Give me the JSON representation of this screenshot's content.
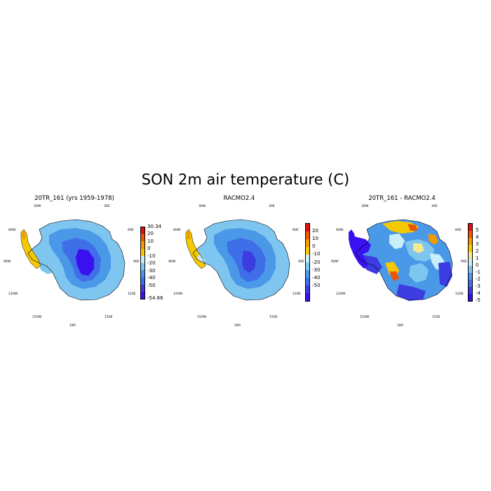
{
  "figure": {
    "title": "SON 2m air temperature (C)"
  },
  "panels": [
    {
      "title": "20TR_161 (yrs 1959-1978)",
      "lon_labels": [
        "30W",
        "30E",
        "60W",
        "60E",
        "90W",
        "90E",
        "120W",
        "120E",
        "150W",
        "150E",
        "180"
      ],
      "colorbar": {
        "colors": [
          "#3a10f0",
          "#3c3ce0",
          "#3e6ee8",
          "#4a99e8",
          "#7ec6f0",
          "#c8eefa",
          "#f5c800",
          "#f09a00",
          "#ee5500",
          "#e01010"
        ],
        "labels": [
          "30.34",
          "20",
          "10",
          "0",
          "-10",
          "-20",
          "-30",
          "-40",
          "-50",
          "-54.66"
        ]
      }
    },
    {
      "title": "RACMO2.4",
      "lon_labels": [
        "30W",
        "30E",
        "60W",
        "60E",
        "90W",
        "90E",
        "120W",
        "120E",
        "150W",
        "150E",
        "180"
      ],
      "colorbar": {
        "colors": [
          "#3a10f0",
          "#3c3ce0",
          "#3e6ee8",
          "#4a99e8",
          "#7ec6f0",
          "#c8eefa",
          "#f5c800",
          "#f09a00",
          "#ee5500",
          "#e01010"
        ],
        "labels": [
          "20",
          "10",
          "0",
          "-10",
          "-20",
          "-30",
          "-40",
          "-50"
        ]
      }
    },
    {
      "title": "20TR_161 - RACMO2.4",
      "lon_labels": [
        "30W",
        "30E",
        "60W",
        "60E",
        "90W",
        "90E",
        "120W",
        "120E",
        "150W",
        "150E",
        "180"
      ],
      "colorbar": {
        "colors": [
          "#3a10f0",
          "#3c3ce0",
          "#3e6ee8",
          "#4a99e8",
          "#7ec6f0",
          "#c8eefa",
          "#f5e890",
          "#f5c800",
          "#f09a00",
          "#ee5500",
          "#e01010"
        ],
        "labels": [
          "5",
          "4",
          "3",
          "2",
          "1",
          "0",
          "-1",
          "-2",
          "-3",
          "-4",
          "-5"
        ]
      }
    }
  ]
}
